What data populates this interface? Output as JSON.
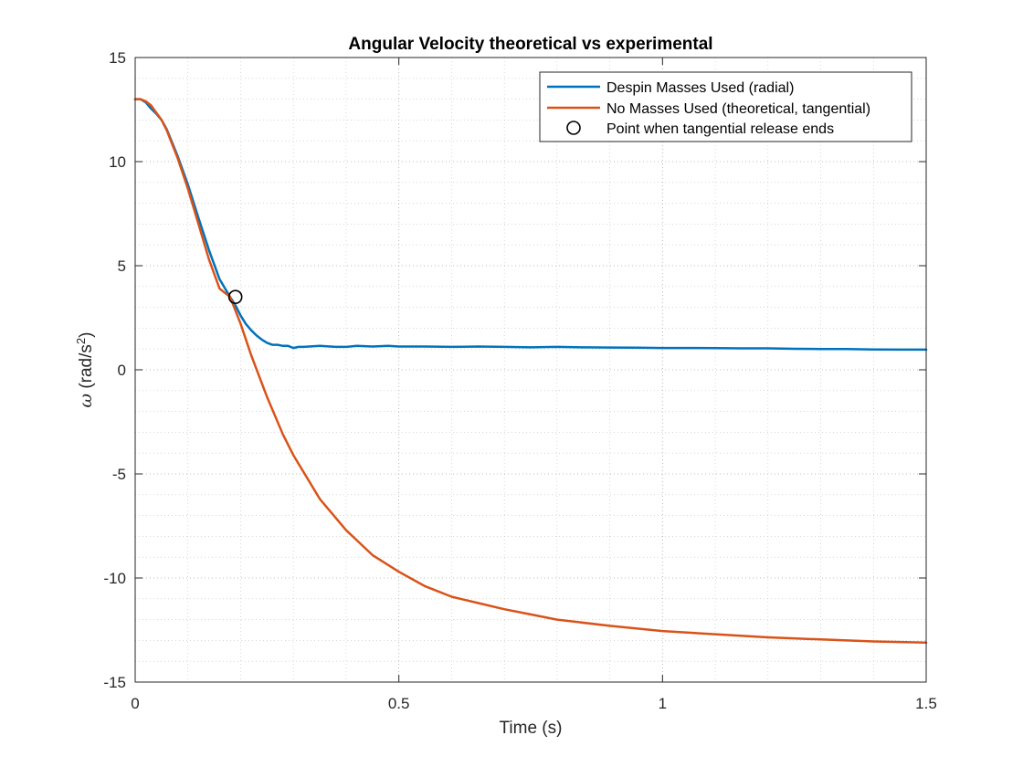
{
  "chart_data": {
    "type": "line",
    "title": "Angular Velocity theoretical vs experimental",
    "xlabel": "Time (s)",
    "ylabel": {
      "symbol": "ω",
      "text": " (rad/s",
      "superscript": "2",
      "close": ")"
    },
    "xlim": [
      0,
      1.5
    ],
    "ylim": [
      -15,
      15
    ],
    "xticks": [
      0,
      0.5,
      1,
      1.5
    ],
    "xtick_labels": [
      "0",
      "0.5",
      "1",
      "1.5"
    ],
    "yticks": [
      -15,
      -10,
      -5,
      0,
      5,
      10,
      15
    ],
    "ytick_labels": [
      "-15",
      "-10",
      "-5",
      "0",
      "5",
      "10",
      "15"
    ],
    "x_minor_step": 0.1,
    "y_minor_step": 1,
    "grid": true,
    "minor_grid": true,
    "legend_position": "top-right",
    "series": [
      {
        "name": "Despin Masses Used (radial)",
        "color": "#0072BD",
        "x": [
          0,
          0.01,
          0.02,
          0.03,
          0.04,
          0.05,
          0.06,
          0.08,
          0.1,
          0.12,
          0.14,
          0.16,
          0.18,
          0.19,
          0.2,
          0.21,
          0.22,
          0.23,
          0.24,
          0.25,
          0.26,
          0.27,
          0.28,
          0.29,
          0.3,
          0.31,
          0.32,
          0.35,
          0.38,
          0.4,
          0.42,
          0.45,
          0.48,
          0.5,
          0.55,
          0.6,
          0.65,
          0.7,
          0.75,
          0.8,
          0.85,
          0.9,
          0.95,
          1.0,
          1.05,
          1.1,
          1.15,
          1.2,
          1.25,
          1.3,
          1.35,
          1.4,
          1.45,
          1.5
        ],
        "y": [
          13.0,
          13.0,
          12.85,
          12.55,
          12.3,
          12.0,
          11.55,
          10.3,
          8.9,
          7.3,
          5.75,
          4.35,
          3.5,
          3.1,
          2.6,
          2.2,
          1.9,
          1.65,
          1.45,
          1.3,
          1.2,
          1.2,
          1.15,
          1.15,
          1.05,
          1.1,
          1.1,
          1.15,
          1.1,
          1.1,
          1.15,
          1.12,
          1.15,
          1.12,
          1.12,
          1.1,
          1.12,
          1.1,
          1.08,
          1.1,
          1.08,
          1.07,
          1.06,
          1.05,
          1.05,
          1.04,
          1.03,
          1.03,
          1.01,
          1.0,
          1.0,
          0.98,
          0.97,
          0.97
        ]
      },
      {
        "name": "No Masses Used (theoretical, tangential)",
        "color": "#D95319",
        "x": [
          0,
          0.01,
          0.02,
          0.03,
          0.04,
          0.05,
          0.06,
          0.08,
          0.1,
          0.12,
          0.14,
          0.16,
          0.18,
          0.2,
          0.22,
          0.25,
          0.28,
          0.3,
          0.35,
          0.4,
          0.45,
          0.5,
          0.55,
          0.6,
          0.65,
          0.7,
          0.75,
          0.8,
          0.9,
          1.0,
          1.1,
          1.2,
          1.3,
          1.4,
          1.5
        ],
        "y": [
          13.0,
          13.0,
          12.9,
          12.7,
          12.35,
          12.0,
          11.5,
          10.2,
          8.7,
          7.0,
          5.3,
          3.9,
          3.5,
          2.2,
          0.7,
          -1.3,
          -3.1,
          -4.1,
          -6.2,
          -7.7,
          -8.9,
          -9.7,
          -10.4,
          -10.9,
          -11.2,
          -11.5,
          -11.75,
          -12.0,
          -12.3,
          -12.55,
          -12.7,
          -12.85,
          -12.95,
          -13.05,
          -13.1
        ]
      },
      {
        "name": "Point when tangential release ends",
        "color": "#000000",
        "marker": "circle",
        "x": [
          0.19
        ],
        "y": [
          3.5
        ]
      }
    ]
  }
}
